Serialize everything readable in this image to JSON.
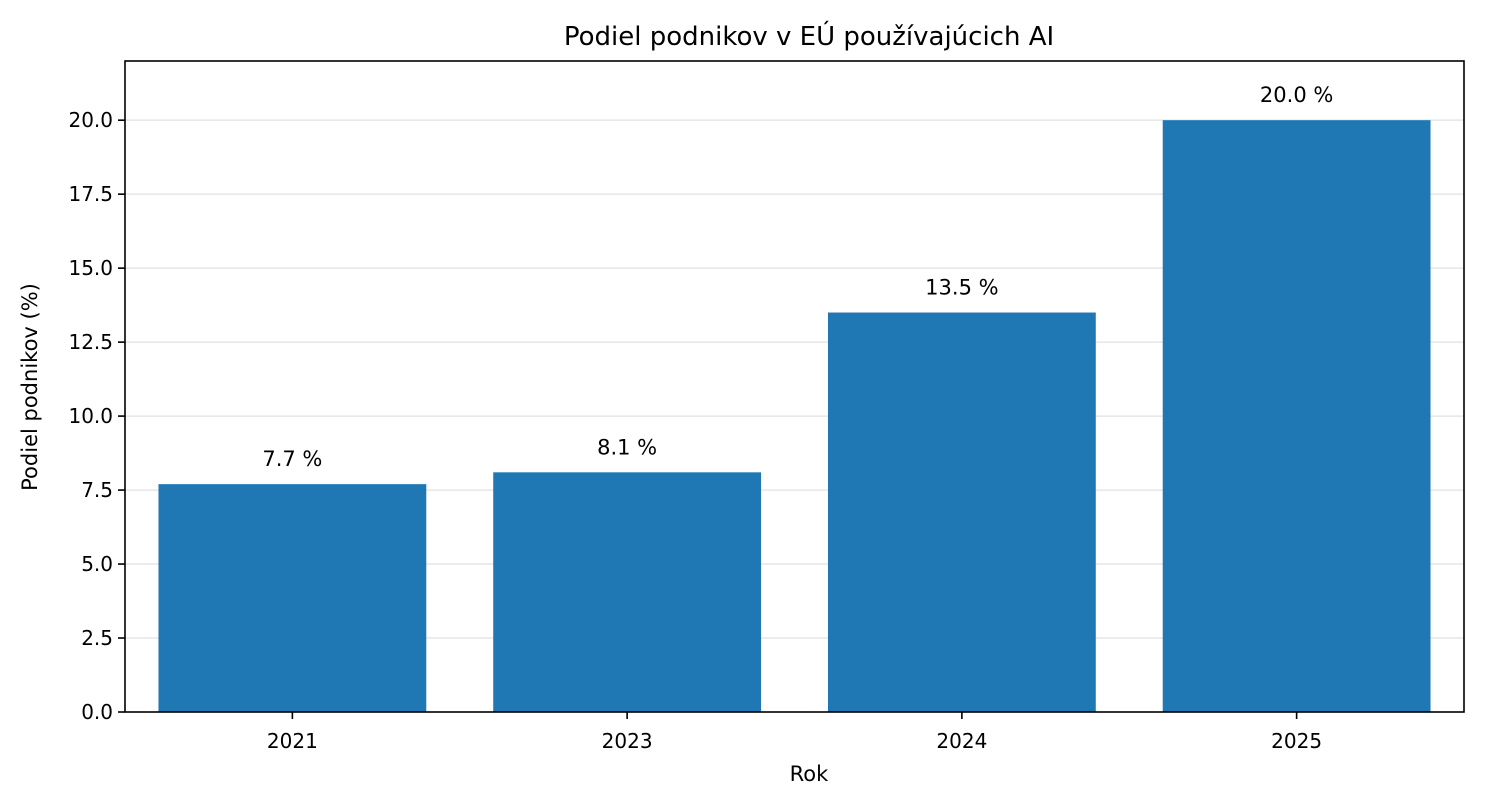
{
  "chart_data": {
    "type": "bar",
    "title": "Podiel podnikov v EÚ používajúcich AI",
    "xlabel": "Rok",
    "ylabel": "Podiel podnikov (%)",
    "categories": [
      "2021",
      "2023",
      "2024",
      "2025"
    ],
    "values": [
      7.7,
      8.1,
      13.5,
      20.0
    ],
    "data_labels": [
      "7.7 %",
      "8.1 %",
      "13.5 %",
      "20.0 %"
    ],
    "ylim": [
      0,
      22
    ],
    "yticks": [
      0.0,
      2.5,
      5.0,
      7.5,
      10.0,
      12.5,
      15.0,
      17.5,
      20.0
    ],
    "ytick_labels": [
      "0.0",
      "2.5",
      "5.0",
      "7.5",
      "10.0",
      "12.5",
      "15.0",
      "17.5",
      "20.0"
    ],
    "grid": "horizontal",
    "legend": "none",
    "bar_color": "#1f77b4",
    "grid_color": "#e6e6e6"
  }
}
